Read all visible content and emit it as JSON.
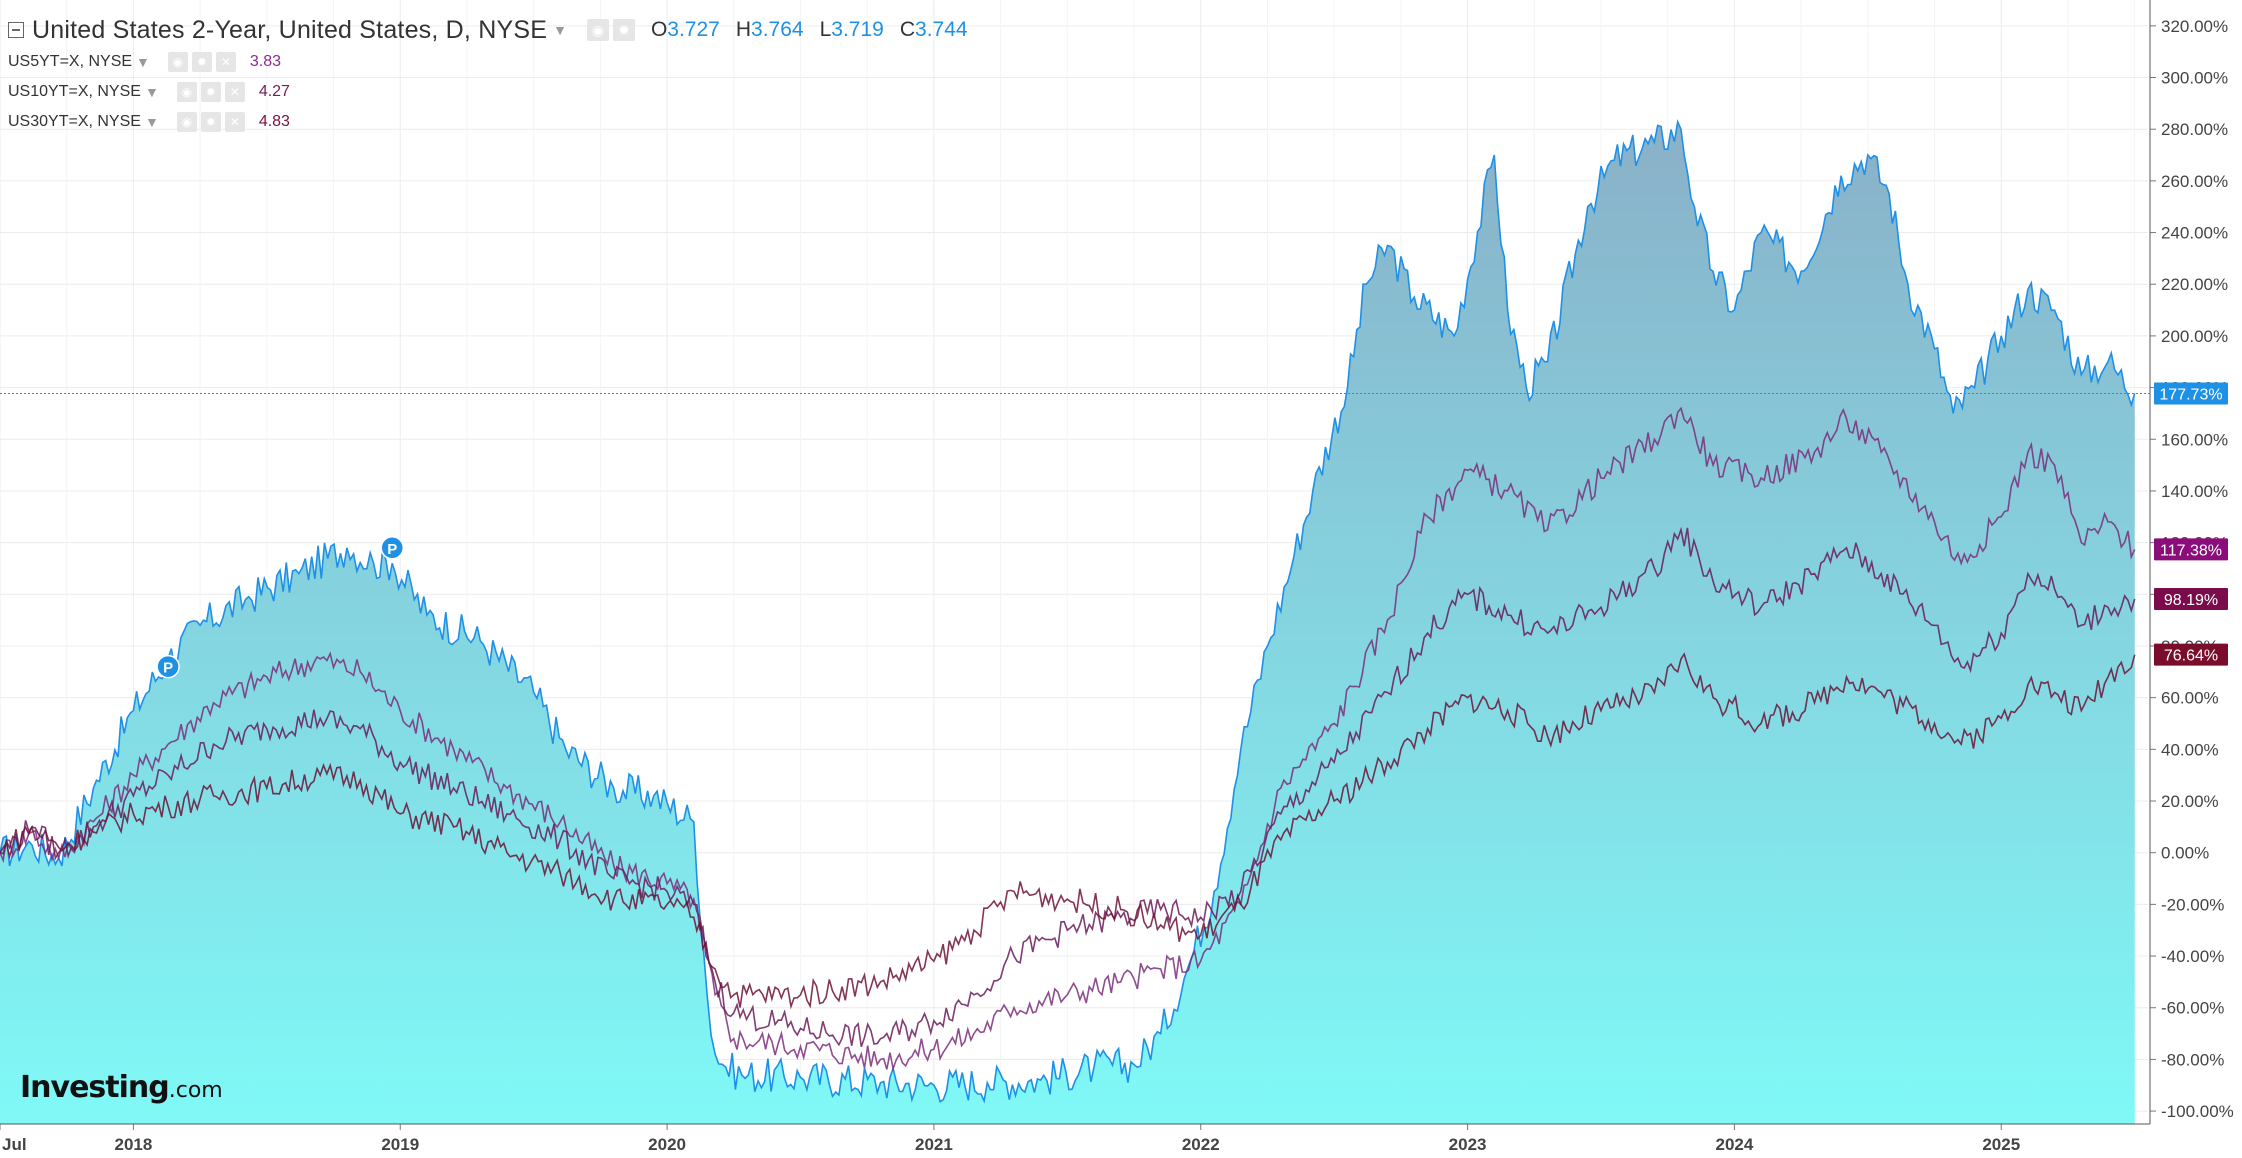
{
  "header": {
    "title": "United States 2-Year, United States, D, NYSE",
    "ohlc": {
      "o_label": "O",
      "o_value": "3.727",
      "h_label": "H",
      "h_value": "3.764",
      "l_label": "L",
      "l_value": "3.719",
      "c_label": "C",
      "c_value": "3.744"
    }
  },
  "legend": [
    {
      "label": "US5YT=X, NYSE",
      "value": "3.83",
      "color": "#8e2c8e"
    },
    {
      "label": "US10YT=X, NYSE",
      "value": "4.27",
      "color": "#7a1a5a"
    },
    {
      "label": "US30YT=X, NYSE",
      "value": "4.83",
      "color": "#801040"
    }
  ],
  "logo": {
    "main": "Investing",
    "suffix": ".com"
  },
  "icons": {
    "eye": "eye-icon",
    "gear": "gear-icon",
    "close": "close-icon",
    "collapse": "collapse-icon",
    "dropdown": "chevron-down-icon"
  },
  "colors": {
    "main_line": "#1e90e6",
    "area_top": "#8ab0c8",
    "area_bottom": "#7ff9f7",
    "badge_main": "#1e90e6",
    "badge_5y": "#8a0d7a",
    "badge_10y": "#7a0c4c",
    "badge_30y": "#7a0d2c"
  },
  "chart_data": {
    "type": "area",
    "y_axis_unit": "%",
    "ylim": [
      -105,
      330
    ],
    "xlim": [
      2017.5,
      2025.55
    ],
    "y_ticks": [
      "320.00%",
      "300.00%",
      "280.00%",
      "260.00%",
      "240.00%",
      "220.00%",
      "200.00%",
      "180.00%",
      "160.00%",
      "140.00%",
      "120.00%",
      "100.00%",
      "80.00%",
      "60.00%",
      "40.00%",
      "20.00%",
      "0.00%",
      "-20.00%",
      "-40.00%",
      "-60.00%",
      "-80.00%",
      "-100.00%"
    ],
    "x_ticks": [
      {
        "label": "Jul",
        "x": 2017.5
      },
      {
        "label": "2018",
        "x": 2018.0
      },
      {
        "label": "2019",
        "x": 2019.0
      },
      {
        "label": "2020",
        "x": 2020.0
      },
      {
        "label": "2021",
        "x": 2021.0
      },
      {
        "label": "2022",
        "x": 2022.0
      },
      {
        "label": "2023",
        "x": 2023.0
      },
      {
        "label": "2024",
        "x": 2024.0
      },
      {
        "label": "2025",
        "x": 2025.0
      }
    ],
    "grid": true,
    "current_line": {
      "value": 177.73
    },
    "badges": [
      {
        "text": "177.73%",
        "value": 177.73,
        "color": "#1e90e6"
      },
      {
        "text": "117.38%",
        "value": 117.38,
        "color": "#8a0d7a"
      },
      {
        "text": "98.19%",
        "value": 98.19,
        "color": "#7a0c4c"
      },
      {
        "text": "76.64%",
        "value": 76.64,
        "color": "#7a0d2c"
      }
    ],
    "markers": [
      {
        "label": "P",
        "x": 2018.13,
        "y": 72
      },
      {
        "label": "P",
        "x": 2018.97,
        "y": 118
      }
    ],
    "series": [
      {
        "name": "United States 2-Year",
        "style": "area",
        "color": "#1e90e6",
        "x": [
          2017.5,
          2017.62,
          2017.72,
          2017.85,
          2018.0,
          2018.13,
          2018.25,
          2018.42,
          2018.62,
          2018.8,
          2018.9,
          2018.97,
          2019.1,
          2019.3,
          2019.5,
          2019.62,
          2019.8,
          2019.95,
          2020.1,
          2020.15,
          2020.18,
          2020.22,
          2020.28,
          2020.5,
          2020.8,
          2021.0,
          2021.2,
          2021.4,
          2021.6,
          2021.75,
          2021.85,
          2021.95,
          2022.05,
          2022.15,
          2022.25,
          2022.35,
          2022.42,
          2022.55,
          2022.62,
          2022.7,
          2022.8,
          2022.95,
          2023.1,
          2023.15,
          2023.22,
          2023.3,
          2023.45,
          2023.55,
          2023.7,
          2023.8,
          2023.85,
          2023.92,
          2024.0,
          2024.1,
          2024.25,
          2024.4,
          2024.5,
          2024.58,
          2024.65,
          2024.75,
          2024.82,
          2024.9,
          2025.0,
          2025.1,
          2025.2,
          2025.3,
          2025.4,
          2025.5
        ],
        "values": [
          0,
          3,
          -2,
          25,
          55,
          75,
          88,
          98,
          108,
          118,
          112,
          112,
          92,
          82,
          62,
          40,
          25,
          22,
          12,
          -55,
          -78,
          -83,
          -86,
          -87,
          -89,
          -90,
          -89,
          -88,
          -83,
          -82,
          -70,
          -45,
          -15,
          40,
          80,
          115,
          140,
          180,
          220,
          235,
          215,
          200,
          270,
          210,
          180,
          190,
          250,
          268,
          275,
          280,
          250,
          225,
          210,
          240,
          225,
          262,
          270,
          255,
          220,
          195,
          170,
          180,
          200,
          218,
          210,
          185,
          190,
          177.73
        ]
      },
      {
        "name": "US5YT=X, NYSE",
        "style": "line",
        "color": "#7b2d7b",
        "x": [
          2017.5,
          2017.62,
          2017.72,
          2017.85,
          2018.0,
          2018.13,
          2018.3,
          2018.5,
          2018.7,
          2018.85,
          2019.0,
          2019.2,
          2019.4,
          2019.6,
          2019.8,
          2020.0,
          2020.1,
          2020.18,
          2020.25,
          2020.5,
          2020.8,
          2021.0,
          2021.15,
          2021.3,
          2021.5,
          2021.7,
          2021.85,
          2022.0,
          2022.15,
          2022.3,
          2022.5,
          2022.7,
          2022.85,
          2023.0,
          2023.15,
          2023.3,
          2023.5,
          2023.7,
          2023.8,
          2023.92,
          2024.1,
          2024.3,
          2024.42,
          2024.55,
          2024.75,
          2024.85,
          2025.0,
          2025.1,
          2025.2,
          2025.3,
          2025.4,
          2025.5
        ],
        "values": [
          0,
          8,
          -2,
          12,
          30,
          42,
          58,
          68,
          75,
          70,
          55,
          40,
          25,
          12,
          -5,
          -12,
          -18,
          -55,
          -72,
          -75,
          -80,
          -76,
          -70,
          -60,
          -55,
          -50,
          -45,
          -42,
          -20,
          25,
          50,
          90,
          130,
          148,
          140,
          125,
          145,
          160,
          172,
          150,
          145,
          155,
          168,
          155,
          128,
          112,
          130,
          155,
          150,
          120,
          128,
          117.38
        ]
      },
      {
        "name": "US10YT=X, NYSE",
        "style": "line",
        "color": "#6a1a5a",
        "x": [
          2017.5,
          2017.62,
          2017.72,
          2017.85,
          2018.0,
          2018.13,
          2018.3,
          2018.5,
          2018.7,
          2018.85,
          2019.0,
          2019.2,
          2019.4,
          2019.6,
          2019.8,
          2020.0,
          2020.1,
          2020.18,
          2020.25,
          2020.5,
          2020.8,
          2021.0,
          2021.15,
          2021.3,
          2021.5,
          2021.7,
          2021.85,
          2022.0,
          2022.15,
          2022.3,
          2022.5,
          2022.7,
          2022.85,
          2023.0,
          2023.15,
          2023.3,
          2023.5,
          2023.7,
          2023.8,
          2023.92,
          2024.1,
          2024.3,
          2024.42,
          2024.55,
          2024.75,
          2024.85,
          2025.0,
          2025.1,
          2025.2,
          2025.3,
          2025.4,
          2025.5
        ],
        "values": [
          0,
          10,
          0,
          10,
          22,
          30,
          42,
          48,
          52,
          48,
          35,
          25,
          15,
          5,
          -10,
          -15,
          -20,
          -50,
          -62,
          -68,
          -72,
          -65,
          -55,
          -40,
          -30,
          -25,
          -22,
          -25,
          -15,
          15,
          35,
          62,
          85,
          100,
          92,
          85,
          95,
          110,
          125,
          105,
          95,
          108,
          118,
          108,
          88,
          72,
          85,
          108,
          102,
          88,
          95,
          98.19
        ]
      },
      {
        "name": "US30YT=X, NYSE",
        "style": "line",
        "color": "#6e1236",
        "x": [
          2017.5,
          2017.62,
          2017.72,
          2017.85,
          2018.0,
          2018.13,
          2018.3,
          2018.5,
          2018.7,
          2018.85,
          2019.0,
          2019.2,
          2019.4,
          2019.6,
          2019.8,
          2020.0,
          2020.1,
          2020.18,
          2020.25,
          2020.5,
          2020.8,
          2021.0,
          2021.15,
          2021.3,
          2021.5,
          2021.7,
          2021.85,
          2022.0,
          2022.15,
          2022.3,
          2022.5,
          2022.7,
          2022.85,
          2023.0,
          2023.15,
          2023.3,
          2023.5,
          2023.7,
          2023.8,
          2023.92,
          2024.1,
          2024.3,
          2024.42,
          2024.55,
          2024.75,
          2024.85,
          2025.0,
          2025.1,
          2025.2,
          2025.3,
          2025.4,
          2025.5
        ],
        "values": [
          0,
          10,
          2,
          8,
          15,
          18,
          22,
          25,
          30,
          28,
          15,
          10,
          0,
          -8,
          -18,
          -20,
          -25,
          -45,
          -55,
          -55,
          -50,
          -42,
          -30,
          -15,
          -18,
          -22,
          -28,
          -32,
          -20,
          5,
          20,
          35,
          48,
          60,
          55,
          45,
          55,
          62,
          75,
          60,
          50,
          58,
          68,
          62,
          50,
          42,
          52,
          65,
          62,
          55,
          68,
          76.64
        ]
      }
    ]
  }
}
